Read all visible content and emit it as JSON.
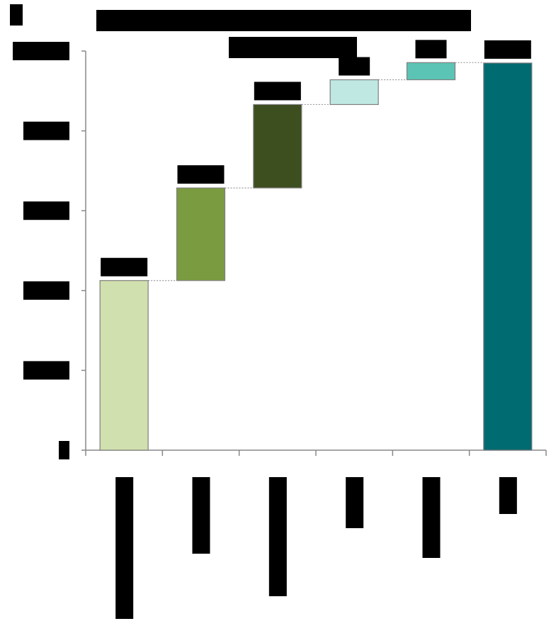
{
  "chart_data": {
    "type": "waterfall",
    "title": "",
    "subtitle": "",
    "ylabel": "",
    "ylim": [
      0,
      100
    ],
    "ytick_count": 6,
    "categories": [
      "",
      "",
      "",
      "",
      "",
      ""
    ],
    "steps": [
      {
        "name": "",
        "kind": "start",
        "value": 42.5,
        "color": "#d0e0ae"
      },
      {
        "name": "",
        "kind": "delta",
        "value": 23.2,
        "color": "#7b9b40"
      },
      {
        "name": "",
        "kind": "delta",
        "value": 20.9,
        "color": "#3d4e1f"
      },
      {
        "name": "",
        "kind": "delta",
        "value": 6.2,
        "color": "#c0e8e2"
      },
      {
        "name": "",
        "kind": "delta",
        "value": 4.3,
        "color": "#5bc4b4"
      },
      {
        "name": "",
        "kind": "total",
        "value": 97.0,
        "color": "#006b70"
      }
    ]
  }
}
